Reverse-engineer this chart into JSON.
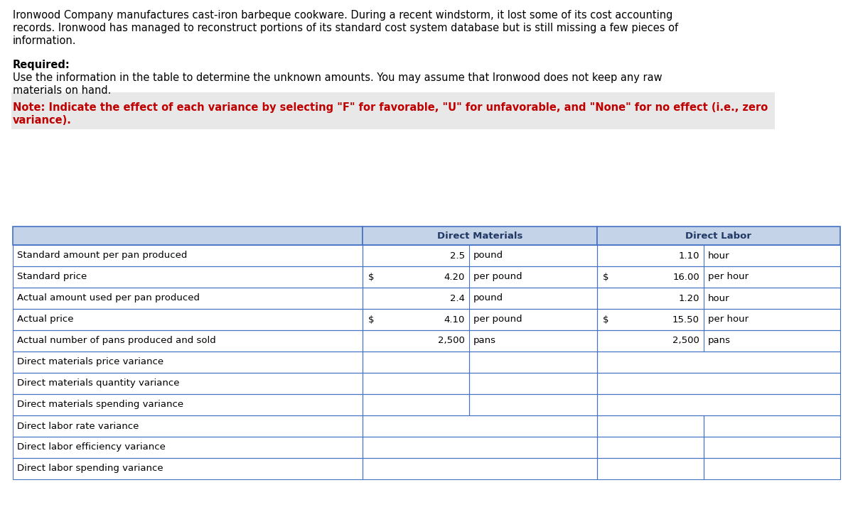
{
  "title_text": "Ironwood Company manufactures cast-iron barbeque cookware. During a recent windstorm, it lost some of its cost accounting\nrecords. Ironwood has managed to reconstruct portions of its standard cost system database but is still missing a few pieces of\ninformation.",
  "required_text": "Required:",
  "required_body": "Use the information in the table to determine the unknown amounts. You may assume that Ironwood does not keep any raw\nmaterials on hand.",
  "note_text": "Note: Indicate the effect of each variance by selecting \"F\" for favorable, \"U\" for unfavorable, and \"None\" for no effect (i.e., zero\nvariance).",
  "header_bg": "#c5d3e8",
  "header_text_color": "#1f3864",
  "table_border_color": "#4472c4",
  "col_headers": [
    "Direct Materials",
    "Direct Labor"
  ],
  "rows": [
    {
      "label": "Standard amount per pan produced",
      "dm_dollar": "",
      "dm_value": "2.5",
      "dm_unit": "pound",
      "dl_dollar": "",
      "dl_value": "1.10",
      "dl_unit": "hour"
    },
    {
      "label": "Standard price",
      "dm_dollar": "$",
      "dm_value": "4.20",
      "dm_unit": "per pound",
      "dl_dollar": "$",
      "dl_value": "16.00",
      "dl_unit": "per hour"
    },
    {
      "label": "Actual amount used per pan produced",
      "dm_dollar": "",
      "dm_value": "2.4",
      "dm_unit": "pound",
      "dl_dollar": "",
      "dl_value": "1.20",
      "dl_unit": "hour"
    },
    {
      "label": "Actual price",
      "dm_dollar": "$",
      "dm_value": "4.10",
      "dm_unit": "per pound",
      "dl_dollar": "$",
      "dl_value": "15.50",
      "dl_unit": "per hour"
    },
    {
      "label": "Actual number of pans produced and sold",
      "dm_dollar": "",
      "dm_value": "2,500",
      "dm_unit": "pans",
      "dl_dollar": "",
      "dl_value": "2,500",
      "dl_unit": "pans"
    },
    {
      "label": "Direct materials price variance",
      "dm_dollar": "",
      "dm_value": "",
      "dm_unit": "",
      "dl_dollar": "",
      "dl_value": "",
      "dl_unit": ""
    },
    {
      "label": "Direct materials quantity variance",
      "dm_dollar": "",
      "dm_value": "",
      "dm_unit": "",
      "dl_dollar": "",
      "dl_value": "",
      "dl_unit": ""
    },
    {
      "label": "Direct materials spending variance",
      "dm_dollar": "",
      "dm_value": "",
      "dm_unit": "",
      "dl_dollar": "",
      "dl_value": "",
      "dl_unit": ""
    },
    {
      "label": "Direct labor rate variance",
      "dm_dollar": "",
      "dm_value": "",
      "dm_unit": "",
      "dl_dollar": "",
      "dl_value": "",
      "dl_unit": ""
    },
    {
      "label": "Direct labor efficiency variance",
      "dm_dollar": "",
      "dm_value": "",
      "dm_unit": "",
      "dl_dollar": "",
      "dl_value": "",
      "dl_unit": ""
    },
    {
      "label": "Direct labor spending variance",
      "dm_dollar": "",
      "dm_value": "",
      "dm_unit": "",
      "dl_dollar": "",
      "dl_value": "",
      "dl_unit": ""
    }
  ],
  "background_color": "#ffffff",
  "text_color": "#000000",
  "note_color": "#c00000",
  "font_size_text": 10.5,
  "font_size_table": 9.5,
  "font_size_header": 9.5,
  "note_highlight": "#e8e8e8"
}
